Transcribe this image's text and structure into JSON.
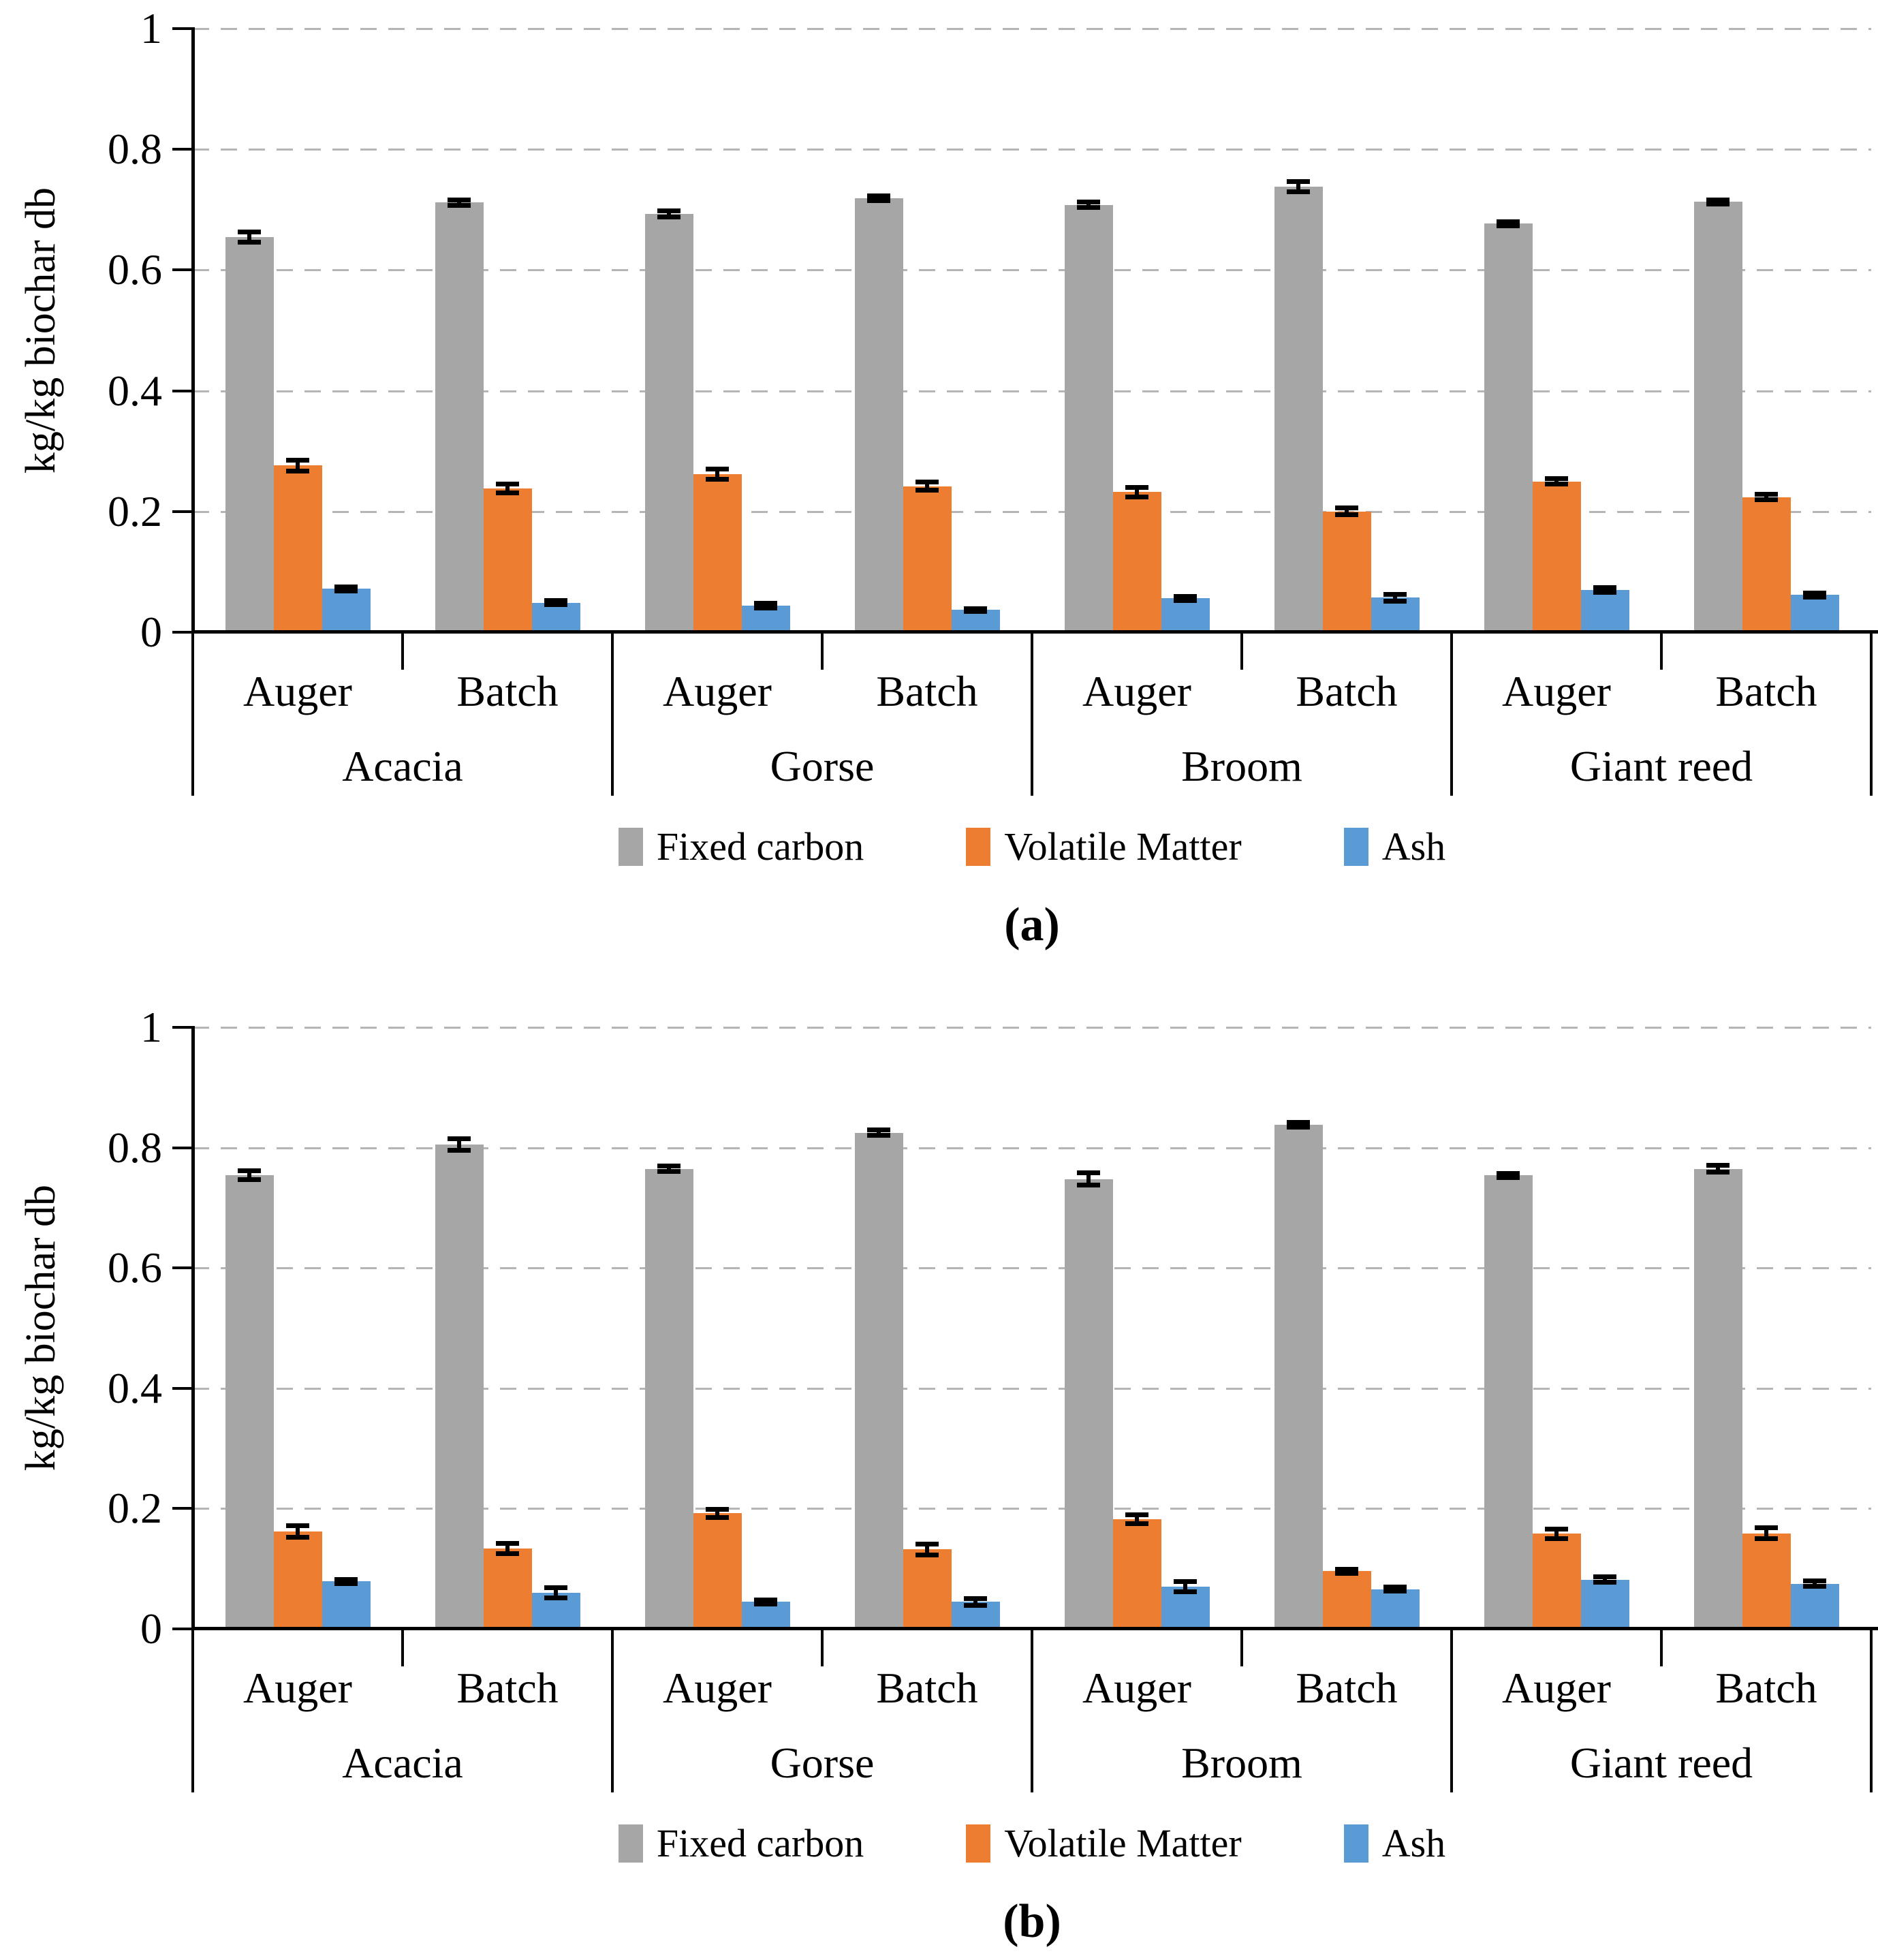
{
  "page": {
    "background": "#ffffff"
  },
  "ylabel": "kg/kg biochar db",
  "colors": {
    "fixed_carbon": "#a6a6a6",
    "volatile_matter": "#ec7d31",
    "ash": "#5b9bd5",
    "gridline": "#b5b5b5",
    "axis": "#000000",
    "error_bar": "#000000"
  },
  "legend": {
    "items": [
      {
        "label": "Fixed carbon",
        "color": "#a6a6a6"
      },
      {
        "label": "Volatile Matter",
        "color": "#ec7d31"
      },
      {
        "label": "Ash",
        "color": "#5b9bd5"
      }
    ]
  },
  "chart_data": [
    {
      "type": "bar",
      "panel_label": "(a)",
      "ylabel": "kg/kg biochar db",
      "ylim": [
        0,
        1
      ],
      "yticks": [
        "1",
        "0.8",
        "0.6",
        "0.4",
        "0.2",
        "0"
      ],
      "ytick_values": [
        1,
        0.8,
        0.6,
        0.4,
        0.2,
        0
      ],
      "grid": "horizontal-dashed",
      "legend_position": "bottom",
      "groups": [
        "Acacia",
        "Gorse",
        "Broom",
        "Giant reed"
      ],
      "subgroups": [
        "Auger",
        "Batch"
      ],
      "column_order": [
        "Acacia-Auger",
        "Acacia-Batch",
        "Gorse-Auger",
        "Gorse-Batch",
        "Broom-Auger",
        "Broom-Batch",
        "Giant reed-Auger",
        "Giant reed-Batch"
      ],
      "series": [
        {
          "name": "Fixed carbon",
          "color": "#a6a6a6",
          "values": [
            0.655,
            0.712,
            0.693,
            0.719,
            0.708,
            0.738,
            0.677,
            0.713
          ],
          "errors": [
            0.009,
            0.005,
            0.006,
            0.004,
            0.005,
            0.009,
            0.004,
            0.004
          ]
        },
        {
          "name": "Volatile Matter",
          "color": "#ec7d31",
          "values": [
            0.276,
            0.238,
            0.262,
            0.242,
            0.232,
            0.2,
            0.25,
            0.224
          ],
          "errors": [
            0.01,
            0.008,
            0.009,
            0.007,
            0.008,
            0.006,
            0.005,
            0.005
          ]
        },
        {
          "name": "Ash",
          "color": "#5b9bd5",
          "values": [
            0.072,
            0.049,
            0.044,
            0.037,
            0.056,
            0.057,
            0.07,
            0.062
          ],
          "errors": [
            0.004,
            0.004,
            0.004,
            0.003,
            0.004,
            0.006,
            0.004,
            0.004
          ]
        }
      ]
    },
    {
      "type": "bar",
      "panel_label": "(b)",
      "ylabel": "kg/kg biochar db",
      "ylim": [
        0,
        1
      ],
      "yticks": [
        "1",
        "0.8",
        "0.6",
        "0.4",
        "0.2",
        "0"
      ],
      "ytick_values": [
        1,
        0.8,
        0.6,
        0.4,
        0.2,
        0
      ],
      "grid": "horizontal-dashed",
      "legend_position": "bottom",
      "groups": [
        "Acacia",
        "Gorse",
        "Broom",
        "Giant reed"
      ],
      "subgroups": [
        "Auger",
        "Batch"
      ],
      "column_order": [
        "Acacia-Auger",
        "Acacia-Batch",
        "Gorse-Auger",
        "Gorse-Batch",
        "Broom-Auger",
        "Broom-Batch",
        "Giant reed-Auger",
        "Giant reed-Batch"
      ],
      "series": [
        {
          "name": "Fixed carbon",
          "color": "#a6a6a6",
          "values": [
            0.754,
            0.805,
            0.765,
            0.825,
            0.748,
            0.838,
            0.754,
            0.765
          ],
          "errors": [
            0.008,
            0.01,
            0.005,
            0.005,
            0.011,
            0.005,
            0.004,
            0.006
          ]
        },
        {
          "name": "Volatile Matter",
          "color": "#ec7d31",
          "values": [
            0.162,
            0.134,
            0.192,
            0.132,
            0.182,
            0.096,
            0.158,
            0.159
          ],
          "errors": [
            0.01,
            0.009,
            0.007,
            0.01,
            0.008,
            0.004,
            0.008,
            0.01
          ]
        },
        {
          "name": "Ash",
          "color": "#5b9bd5",
          "values": [
            0.079,
            0.06,
            0.045,
            0.045,
            0.07,
            0.066,
            0.082,
            0.075
          ],
          "errors": [
            0.004,
            0.009,
            0.004,
            0.006,
            0.009,
            0.004,
            0.005,
            0.005
          ]
        }
      ]
    }
  ]
}
